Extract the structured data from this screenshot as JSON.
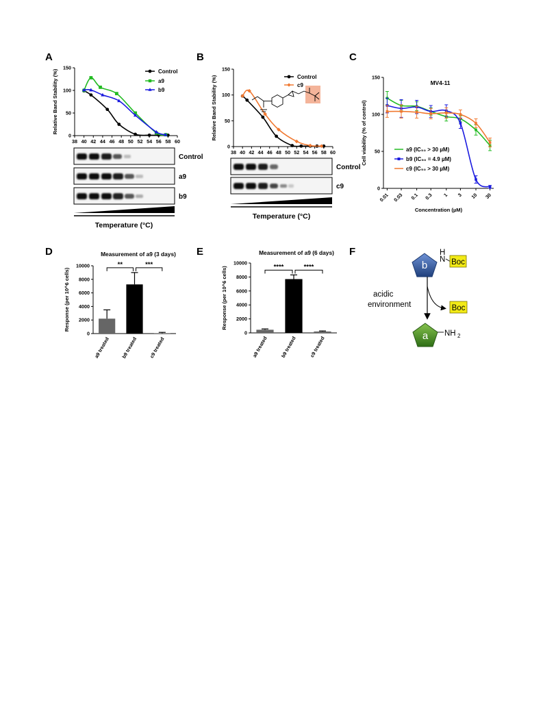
{
  "panels": {
    "A": "A",
    "B": "B",
    "C": "C",
    "D": "D",
    "E": "E",
    "F": "F"
  },
  "colors": {
    "control": "#000000",
    "a9": "#22bb22",
    "b9": "#1a1adf",
    "c9": "#f07830",
    "grey_bar": "#666666",
    "black_bar": "#000000"
  },
  "chart_data": [
    {
      "panel": "A",
      "type": "line",
      "xlabel": "",
      "ylabel": "Relative Band Stability (%)",
      "xlim": [
        38,
        60
      ],
      "ylim": [
        0,
        150
      ],
      "xticks": [
        "38",
        "40",
        "42",
        "44",
        "46",
        "48",
        "50",
        "52",
        "54",
        "56",
        "58",
        "60"
      ],
      "yticks": [
        "0",
        "50",
        "100",
        "150"
      ],
      "series": [
        {
          "name": "Control",
          "color": "#000000",
          "marker": "circle",
          "x": [
            40,
            41.5,
            45,
            47.5,
            51,
            54,
            56,
            58
          ],
          "y": [
            99,
            90,
            58,
            25,
            3,
            1,
            1,
            1
          ]
        },
        {
          "name": "a9",
          "color": "#22bb22",
          "marker": "square",
          "x": [
            40,
            41.5,
            43.5,
            47,
            51,
            55.5,
            57.5
          ],
          "y": [
            100,
            128,
            107,
            93,
            50,
            6,
            2
          ]
        },
        {
          "name": "b9",
          "color": "#1a1adf",
          "marker": "triangle",
          "x": [
            40,
            41.5,
            44,
            47.5,
            51,
            55.5,
            57.5
          ],
          "y": [
            101,
            101,
            90,
            77,
            45,
            8,
            2
          ]
        }
      ],
      "blot_labels": [
        "Control",
        "a9",
        "b9"
      ],
      "temperature_label": "Temperature (°C)"
    },
    {
      "panel": "B",
      "type": "line",
      "xlabel": "",
      "ylabel": "Relative Band Stability (%)",
      "xlim": [
        38,
        60
      ],
      "ylim": [
        0,
        150
      ],
      "xticks": [
        "38",
        "40",
        "42",
        "44",
        "46",
        "48",
        "50",
        "52",
        "54",
        "56",
        "58",
        "60"
      ],
      "yticks": [
        "0",
        "50",
        "100",
        "150"
      ],
      "series": [
        {
          "name": "Control",
          "color": "#000000",
          "marker": "circle",
          "x": [
            40,
            41,
            44.5,
            47.5,
            51,
            53,
            55,
            56.5,
            58
          ],
          "y": [
            98,
            90,
            57,
            20,
            2,
            1,
            1,
            1,
            1
          ]
        },
        {
          "name": "c9",
          "color": "#f07830",
          "marker": "diamond",
          "x": [
            40,
            41.5,
            45,
            48,
            52,
            55,
            57.5
          ],
          "y": [
            98,
            108,
            63,
            33,
            10,
            2,
            1
          ]
        }
      ],
      "blot_labels": [
        "Control",
        "c9"
      ],
      "temperature_label": "Temperature (°C)"
    },
    {
      "panel": "C",
      "type": "line",
      "title": "MV4-11",
      "xlabel": "Concentration (µM)",
      "ylabel": "Cell viability (% of control)",
      "xscale": "log",
      "xlim": [
        0.01,
        30
      ],
      "ylim": [
        0,
        150
      ],
      "xticks": [
        "0.01",
        "0.03",
        "0.1",
        "0.3",
        "1",
        "3",
        "10",
        "30"
      ],
      "yticks": [
        "0",
        "50",
        "100",
        "150"
      ],
      "series": [
        {
          "name": "a9 (IC₅₀ > 30 µM)",
          "color": "#22bb22",
          "x": [
            0.01,
            0.03,
            0.1,
            0.3,
            1,
            3,
            10,
            30
          ],
          "y": [
            122,
            112,
            111,
            104,
            97,
            94,
            79,
            58
          ]
        },
        {
          "name": "b9 (IC₅₀ = 4.9 µM)",
          "color": "#1a1adf",
          "x": [
            0.01,
            0.03,
            0.1,
            0.3,
            1,
            3,
            10,
            30
          ],
          "y": [
            112,
            108,
            110,
            104,
            105,
            88,
            12,
            2
          ]
        },
        {
          "name": "c9 (IC₅₀ > 30 µM)",
          "color": "#f07830",
          "x": [
            0.01,
            0.03,
            0.1,
            0.3,
            1,
            3,
            10,
            30
          ],
          "y": [
            104,
            104,
            103,
            101,
            102,
            100,
            88,
            62
          ]
        }
      ]
    },
    {
      "panel": "D",
      "type": "bar",
      "title": "Measurement of a9 (3 days)",
      "ylabel": "Response (per 10^6 cells)",
      "ylim": [
        0,
        10000
      ],
      "yticks": [
        "0",
        "2000",
        "4000",
        "6000",
        "8000",
        "10000"
      ],
      "categories": [
        "a9 treated",
        "b9 treated",
        "c9 treated"
      ],
      "values": [
        2200,
        7250,
        60
      ],
      "errors": [
        1300,
        1750,
        120
      ],
      "significance": [
        "**",
        "***"
      ]
    },
    {
      "panel": "E",
      "type": "bar",
      "title": "Measurement of a9 (6 days)",
      "ylabel": "Response (per 10^6 cells)",
      "ylim": [
        0,
        10000
      ],
      "yticks": [
        "0",
        "2000",
        "4000",
        "6000",
        "8000",
        "10000"
      ],
      "categories": [
        "a9 treated",
        "b9 treated",
        "c9 treated"
      ],
      "values": [
        450,
        7700,
        200
      ],
      "errors": [
        120,
        600,
        80
      ],
      "significance": [
        "****",
        "****"
      ]
    }
  ],
  "scheme": {
    "b_label": "b",
    "a_label": "a",
    "boc": "Boc",
    "nh": "N",
    "h": "H",
    "nh2": "NH",
    "nh2_sub": "2",
    "condition_line1": "acidic",
    "condition_line2": "environment"
  }
}
